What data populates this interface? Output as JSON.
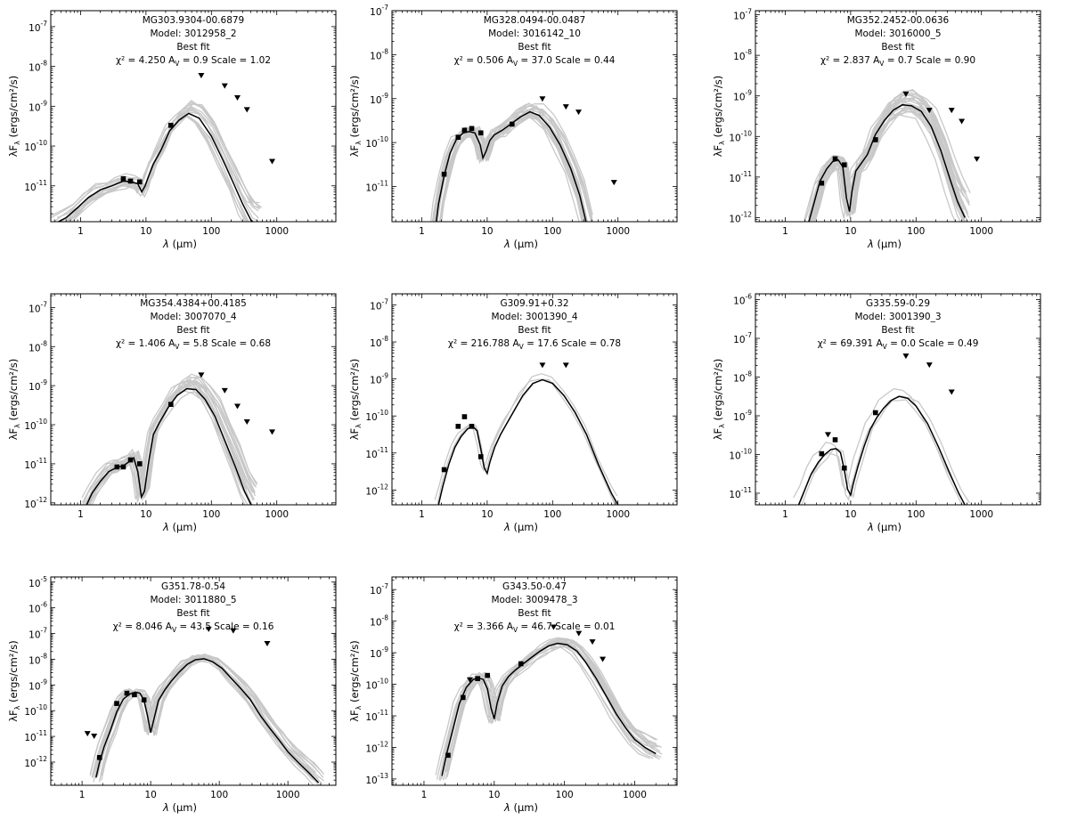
{
  "figure": {
    "panel_status": "Best fit",
    "stat_labels": {
      "chi2": "χ² =",
      "av": "A",
      "av_sub": "V",
      "av_eq": "=",
      "scale": "Scale ="
    },
    "ylabel": {
      "lambda": "λF",
      "sub": "λ",
      "units": " (ergs/cm²/s)"
    },
    "xlabel": {
      "lambda": "λ",
      "mu": " (μm)"
    }
  },
  "chart_data": [
    {
      "type": "line",
      "title": "MG303.9304-00.6879",
      "model": "Model: 3012958_2",
      "chi2": "4.250",
      "av": "0.9",
      "scale": "1.02",
      "xlim": [
        0.35,
        8000
      ],
      "ylim_log": [
        -11.9,
        -6.6
      ],
      "xticks": [
        "1",
        "10",
        "100",
        "1000"
      ],
      "yticks": [
        "10",
        "10",
        "10",
        "10",
        "10"
      ],
      "ytick_exp": [
        "-11",
        "-10",
        "-9",
        "-8",
        "-7"
      ],
      "best_fit": {
        "x": [
          0.4,
          0.6,
          0.9,
          1.3,
          2,
          3,
          4.5,
          6,
          7.5,
          8.6,
          9.7,
          11,
          13,
          17,
          23,
          32,
          45,
          65,
          100,
          150,
          220,
          300,
          400,
          500
        ],
        "logy": [
          -11.95,
          -11.8,
          -11.55,
          -11.3,
          -11.1,
          -11.0,
          -10.88,
          -10.9,
          -10.95,
          -11.15,
          -11.0,
          -10.75,
          -10.45,
          -10.1,
          -9.62,
          -9.35,
          -9.18,
          -9.3,
          -9.75,
          -10.35,
          -10.95,
          -11.45,
          -11.85,
          -12.0
        ]
      },
      "data_points": {
        "x": [
          4.5,
          5.8,
          8,
          24
        ],
        "logy": [
          -10.82,
          -10.88,
          -10.9,
          -9.48
        ]
      },
      "upper_limits": {
        "x": [
          70,
          160,
          250,
          350,
          850
        ],
        "logy": [
          -8.22,
          -8.48,
          -8.78,
          -9.08,
          -10.38
        ]
      },
      "fits_spread": 0.45,
      "fits_count": 14
    },
    {
      "type": "line",
      "title": "MG328.0494-00.0487",
      "model": "Model: 3016142_10",
      "chi2": "0.506",
      "av": "37.0",
      "scale": "0.44",
      "xlim": [
        0.35,
        8000
      ],
      "ylim_log": [
        -11.8,
        -7.0
      ],
      "xticks": [
        "1",
        "10",
        "100",
        "1000"
      ],
      "yticks": [
        "10",
        "10",
        "10",
        "10",
        "10"
      ],
      "ytick_exp": [
        "-11",
        "-10",
        "-9",
        "-8",
        "-7"
      ],
      "best_fit": {
        "x": [
          1.6,
          1.8,
          2.2,
          2.7,
          3.4,
          4.3,
          5.3,
          6.5,
          7.8,
          8.6,
          9.6,
          11,
          13,
          17,
          23,
          32,
          45,
          62,
          90,
          130,
          190,
          260,
          350
        ],
        "logy": [
          -12.0,
          -11.4,
          -10.75,
          -10.25,
          -9.92,
          -9.78,
          -9.75,
          -9.78,
          -10.05,
          -10.35,
          -10.2,
          -9.95,
          -9.82,
          -9.72,
          -9.58,
          -9.42,
          -9.3,
          -9.38,
          -9.65,
          -10.05,
          -10.6,
          -11.2,
          -12.0
        ]
      },
      "data_points": {
        "x": [
          2.2,
          3.6,
          4.5,
          5.8,
          8,
          24
        ],
        "logy": [
          -10.72,
          -9.88,
          -9.72,
          -9.68,
          -9.78,
          -9.58
        ]
      },
      "upper_limits": {
        "x": [
          70,
          160,
          250,
          870
        ],
        "logy": [
          -9.0,
          -9.18,
          -9.3,
          -10.9
        ]
      },
      "fits_spread": 0.3,
      "fits_count": 22
    },
    {
      "type": "line",
      "title": "MG352.2452-00.0636",
      "model": "Model: 3016000_5",
      "chi2": "2.837",
      "av": "0.7",
      "scale": "0.90",
      "xlim": [
        0.35,
        8000
      ],
      "ylim_log": [
        -12.1,
        -6.9
      ],
      "xticks": [
        "1",
        "10",
        "100",
        "1000"
      ],
      "yticks": [
        "10",
        "10",
        "10",
        "10",
        "10",
        "10"
      ],
      "ytick_exp": [
        "-12",
        "-11",
        "-10",
        "-9",
        "-8",
        "-7"
      ],
      "best_fit": {
        "x": [
          2.3,
          2.8,
          3.4,
          4.3,
          5.3,
          6.5,
          7.6,
          8.6,
          9.6,
          10.5,
          12,
          14,
          18,
          24,
          33,
          45,
          62,
          85,
          120,
          170,
          240,
          330,
          430,
          560
        ],
        "logy": [
          -12.1,
          -11.6,
          -11.1,
          -10.8,
          -10.62,
          -10.58,
          -10.75,
          -11.5,
          -11.85,
          -11.35,
          -10.85,
          -10.7,
          -10.45,
          -9.95,
          -9.6,
          -9.35,
          -9.22,
          -9.24,
          -9.38,
          -9.75,
          -10.35,
          -11.05,
          -11.6,
          -12.0
        ]
      },
      "data_points": {
        "x": [
          3.6,
          5.8,
          8,
          24
        ],
        "logy": [
          -11.15,
          -10.55,
          -10.7,
          -10.08
        ]
      },
      "upper_limits": {
        "x": [
          70,
          160,
          350,
          500,
          850
        ],
        "logy": [
          -8.95,
          -9.35,
          -9.35,
          -9.62,
          -10.55
        ]
      },
      "fits_spread": 0.55,
      "fits_count": 24
    },
    {
      "type": "line",
      "title": "MG354.4384+00.4185",
      "model": "Model: 3007070_4",
      "chi2": "1.406",
      "av": "5.8",
      "scale": "0.68",
      "xlim": [
        0.35,
        8000
      ],
      "ylim_log": [
        -12.05,
        -6.65
      ],
      "xticks": [
        "1",
        "10",
        "100",
        "1000"
      ],
      "yticks": [
        "10",
        "10",
        "10",
        "10",
        "10",
        "10"
      ],
      "ytick_exp": [
        "-12",
        "-11",
        "-10",
        "-9",
        "-8",
        "-7"
      ],
      "best_fit": {
        "x": [
          1.2,
          1.5,
          2,
          2.7,
          3.5,
          4.5,
          5.5,
          6.5,
          7.5,
          8.5,
          9.5,
          11,
          13,
          16,
          22,
          30,
          42,
          58,
          80,
          115,
          160,
          230,
          320,
          420
        ],
        "logy": [
          -12.1,
          -11.75,
          -11.45,
          -11.2,
          -11.1,
          -11.05,
          -10.95,
          -10.85,
          -11.2,
          -11.85,
          -11.7,
          -10.95,
          -10.25,
          -9.95,
          -9.55,
          -9.25,
          -9.08,
          -9.1,
          -9.35,
          -9.8,
          -10.4,
          -11.05,
          -11.7,
          -12.1
        ]
      },
      "data_points": {
        "x": [
          3.6,
          4.5,
          5.8,
          8,
          24
        ],
        "logy": [
          -11.08,
          -11.08,
          -10.9,
          -11.0,
          -9.48
        ]
      },
      "upper_limits": {
        "x": [
          70,
          160,
          250,
          350,
          850
        ],
        "logy": [
          -8.72,
          -9.12,
          -9.52,
          -9.92,
          -10.18
        ]
      },
      "fits_spread": 0.45,
      "fits_count": 18
    },
    {
      "type": "line",
      "title": "G309.91+0.32",
      "model": "Model: 3001390_4",
      "chi2": "216.788",
      "av": "17.6",
      "scale": "0.78",
      "xlim": [
        0.35,
        8000
      ],
      "ylim_log": [
        -12.4,
        -6.7
      ],
      "xticks": [
        "1",
        "10",
        "100",
        "1000"
      ],
      "yticks": [
        "10",
        "10",
        "10",
        "10",
        "10",
        "10"
      ],
      "ytick_exp": [
        "-12",
        "-11",
        "-10",
        "-9",
        "-8",
        "-7"
      ],
      "best_fit": {
        "x": [
          1.8,
          2.1,
          2.6,
          3.2,
          4,
          5,
          6,
          7,
          8,
          9,
          10,
          11,
          13,
          16,
          20,
          26,
          35,
          50,
          70,
          100,
          150,
          220,
          330,
          500,
          800,
          1000
        ],
        "logy": [
          -12.4,
          -11.9,
          -11.3,
          -10.85,
          -10.55,
          -10.35,
          -10.28,
          -10.4,
          -10.9,
          -11.4,
          -11.55,
          -11.25,
          -10.85,
          -10.5,
          -10.2,
          -9.85,
          -9.45,
          -9.12,
          -9.02,
          -9.12,
          -9.45,
          -9.9,
          -10.5,
          -11.3,
          -12.1,
          -12.4
        ]
      },
      "data_points": {
        "x": [
          2.2,
          3.6,
          4.5,
          5.8,
          8
        ],
        "logy": [
          -11.45,
          -10.28,
          -10.02,
          -10.28,
          -11.1
        ]
      },
      "upper_limits": {
        "x": [
          70,
          160
        ],
        "logy": [
          -8.62,
          -8.62
        ]
      },
      "fits_spread": 0.18,
      "fits_count": 3
    },
    {
      "type": "line",
      "title": "G335.59-0.29",
      "model": "Model: 3001390_3",
      "chi2": "69.391",
      "av": "0.0",
      "scale": "0.49",
      "xlim": [
        0.35,
        8000
      ],
      "ylim_log": [
        -11.3,
        -5.85
      ],
      "xticks": [
        "1",
        "10",
        "100",
        "1000"
      ],
      "yticks": [
        "10",
        "10",
        "10",
        "10",
        "10",
        "10"
      ],
      "ytick_exp": [
        "-11",
        "-10",
        "-9",
        "-8",
        "-7",
        "-6"
      ],
      "best_fit": {
        "x": [
          1.6,
          2,
          2.5,
          3.2,
          4,
          5,
          6,
          7,
          8,
          9,
          10,
          11,
          13,
          16,
          20,
          25,
          32,
          42,
          55,
          75,
          100,
          150,
          220,
          330,
          450,
          600
        ],
        "logy": [
          -11.3,
          -10.9,
          -10.5,
          -10.2,
          -10.0,
          -9.87,
          -9.85,
          -9.95,
          -10.4,
          -10.9,
          -11.05,
          -10.75,
          -10.3,
          -9.8,
          -9.35,
          -9.05,
          -8.8,
          -8.6,
          -8.5,
          -8.55,
          -8.75,
          -9.2,
          -9.8,
          -10.5,
          -11.0,
          -11.4
        ]
      },
      "data_points": {
        "x": [
          3.6,
          5.8,
          8,
          24
        ],
        "logy": [
          -9.98,
          -9.62,
          -10.35,
          -8.92
        ]
      },
      "upper_limits": {
        "x": [
          4.5,
          70,
          160,
          350
        ],
        "logy": [
          -9.48,
          -7.45,
          -7.68,
          -8.38
        ]
      },
      "fits_spread": 0.3,
      "fits_count": 3
    },
    {
      "type": "line",
      "title": "G351.78-0.54",
      "model": "Model: 3011880_5",
      "chi2": "8.046",
      "av": "43.5",
      "scale": "0.16",
      "xlim": [
        0.35,
        5000
      ],
      "ylim_log": [
        -12.9,
        -4.8
      ],
      "xticks": [
        "1",
        "10",
        "100",
        "1000"
      ],
      "yticks": [
        "10",
        "10",
        "10",
        "10",
        "10",
        "10",
        "10",
        "10"
      ],
      "ytick_exp": [
        "-12",
        "-11",
        "-10",
        "-9",
        "-8",
        "-7",
        "-6",
        "-5"
      ],
      "best_fit": {
        "x": [
          1.6,
          1.8,
          2.1,
          2.6,
          3.2,
          4,
          5,
          6,
          7,
          8,
          9,
          10,
          11,
          13,
          16,
          20,
          26,
          34,
          45,
          60,
          80,
          110,
          150,
          200,
          280,
          400,
          550,
          750,
          1000,
          1400,
          2000,
          2800
        ],
        "logy": [
          -12.6,
          -12.0,
          -11.4,
          -10.75,
          -10.05,
          -9.55,
          -9.35,
          -9.28,
          -9.32,
          -9.6,
          -10.2,
          -10.85,
          -10.4,
          -9.6,
          -9.2,
          -8.85,
          -8.5,
          -8.2,
          -8.02,
          -7.98,
          -8.1,
          -8.35,
          -8.75,
          -9.1,
          -9.55,
          -10.2,
          -10.7,
          -11.15,
          -11.6,
          -12.0,
          -12.4,
          -12.8
        ]
      },
      "data_points": {
        "x": [
          1.8,
          3.2,
          4.5,
          5.8,
          8
        ],
        "logy": [
          -11.82,
          -9.72,
          -9.32,
          -9.38,
          -9.58
        ]
      },
      "upper_limits": {
        "x": [
          1.2,
          1.5,
          70,
          160,
          500
        ],
        "logy": [
          -10.88,
          -10.98,
          -6.82,
          -6.88,
          -7.38
        ]
      },
      "fits_spread": 0.3,
      "fits_count": 16
    },
    {
      "type": "line",
      "title": "G343.50-0.47",
      "model": "Model: 3009478_3",
      "chi2": "3.366",
      "av": "46.7",
      "scale": "0.01",
      "xlim": [
        0.35,
        4000
      ],
      "ylim_log": [
        -13.2,
        -6.6
      ],
      "xticks": [
        "1",
        "10",
        "100",
        "1000"
      ],
      "yticks": [
        "10",
        "10",
        "10",
        "10",
        "10",
        "10",
        "10"
      ],
      "ytick_exp": [
        "-13",
        "-12",
        "-11",
        "-10",
        "-9",
        "-8",
        "-7"
      ],
      "best_fit": {
        "x": [
          1.8,
          2.1,
          2.6,
          3.2,
          4,
          5,
          6,
          7,
          8,
          9,
          10,
          11,
          13,
          16,
          20,
          26,
          34,
          45,
          60,
          80,
          110,
          150,
          200,
          280,
          400,
          550,
          750,
          1000,
          1400,
          2000
        ],
        "logy": [
          -12.9,
          -12.2,
          -11.4,
          -10.6,
          -10.1,
          -9.85,
          -9.8,
          -9.85,
          -10.15,
          -10.75,
          -11.1,
          -10.6,
          -10.05,
          -9.75,
          -9.55,
          -9.35,
          -9.15,
          -8.95,
          -8.78,
          -8.7,
          -8.75,
          -8.95,
          -9.3,
          -9.8,
          -10.4,
          -10.95,
          -11.4,
          -11.75,
          -12.0,
          -12.2
        ]
      },
      "data_points": {
        "x": [
          2.2,
          3.6,
          5.8,
          8,
          24
        ],
        "logy": [
          -12.25,
          -10.42,
          -9.82,
          -9.72,
          -9.35
        ]
      },
      "upper_limits": {
        "x": [
          4.5,
          70,
          160,
          250,
          350
        ],
        "logy": [
          -9.85,
          -8.18,
          -8.38,
          -8.65,
          -9.2
        ]
      },
      "fits_spread": 0.35,
      "fits_count": 18
    }
  ]
}
